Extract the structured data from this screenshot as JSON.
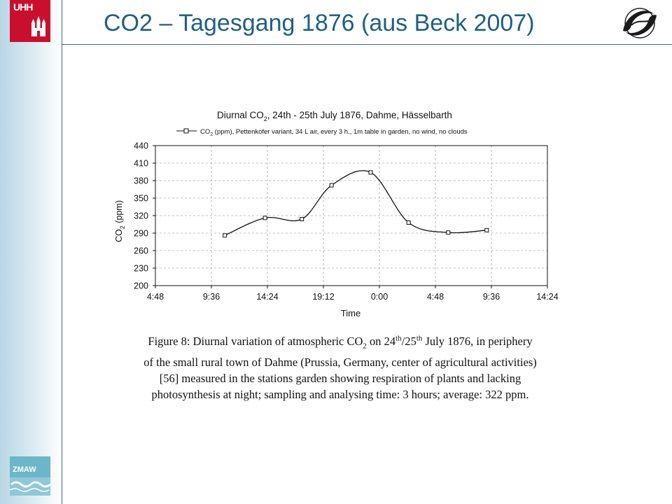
{
  "slide": {
    "title": "CO2 – Tagesgang 1876 (aus Beck 2007)"
  },
  "logos": {
    "uhh_text": "UHH",
    "zmaw_text": "ZMAW"
  },
  "colors": {
    "title_blue": "#1f5f86",
    "uhh_red": "#c8102e",
    "sidebar_blue": "#b9d6e4",
    "rule_blue": "#3a6f8a",
    "zmaw_teal": "#6db6c9"
  },
  "chart_data": {
    "type": "line",
    "title_main": "Diurnal CO",
    "title_sub": "2",
    "title_rest": ", 24th - 25th July 1876, Dahme, Hässelbarth",
    "legend_main": "CO",
    "legend_sub": "2",
    "legend_rest": " (ppm), Pettenkofer variant, 34 L air, every 3 h., 1m table in garden, no wind, no clouds",
    "legend_position": "top",
    "ylabel_main": "CO",
    "ylabel_sub": "2",
    "ylabel_rest": " (ppm)",
    "xlabel": "Time",
    "ylim": [
      200,
      440
    ],
    "yticks": [
      "200",
      "230",
      "260",
      "290",
      "320",
      "350",
      "380",
      "410",
      "440"
    ],
    "xticks": [
      "4:48",
      "9:36",
      "14:24",
      "19:12",
      "0:00",
      "4:48",
      "9:36",
      "14:24"
    ],
    "x_range_hours": [
      0,
      33.6
    ],
    "grid": "dashed",
    "marker": "open-square",
    "series": [
      {
        "name": "CO2 (ppm), Pettenkofer variant, 34 L air, every 3 h., 1m table in garden, no wind, no clouds",
        "x_hours": [
          5.95,
          9.4,
          12.55,
          15.1,
          18.45,
          21.7,
          25.1,
          28.4
        ],
        "values": [
          286,
          316,
          314,
          372,
          394,
          308,
          291,
          295
        ]
      }
    ]
  },
  "caption": {
    "l1_a": "Figure 8: Diurnal variation of atmospheric CO",
    "l1_sub": "2",
    "l1_b": " on 24",
    "l1_sup1": "th",
    "l1_c": "/25",
    "l1_sup2": "th",
    "l1_d": " July 1876, in periphery",
    "l2": "of the small rural town of Dahme (Prussia, Germany, center of agricultural activities)",
    "l3": "[56] measured in the stations garden showing respiration of plants and lacking",
    "l4": "photosynthesis at night; sampling and analysing time: 3 hours; average: 322 ppm."
  }
}
